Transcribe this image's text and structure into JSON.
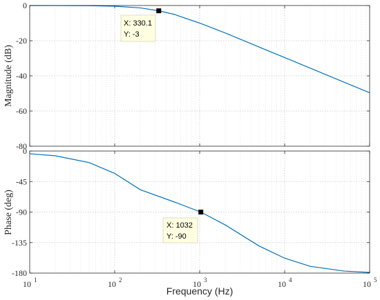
{
  "chart_data": {
    "type": "line",
    "xscale": "log",
    "xlabel": "Frequency  (Hz)",
    "x_ticks": [
      10,
      100,
      1000,
      10000,
      100000
    ],
    "x_tick_labels": [
      {
        "base": "10",
        "exp": "1"
      },
      {
        "base": "10",
        "exp": "2"
      },
      {
        "base": "10",
        "exp": "3"
      },
      {
        "base": "10",
        "exp": "4"
      },
      {
        "base": "10",
        "exp": "5"
      }
    ],
    "line_color": "#0072BD",
    "grid": true,
    "panels": [
      {
        "id": "magnitude",
        "ylabel": "Magnitude (dB)",
        "xlim": [
          10,
          100000
        ],
        "ylim": [
          -80,
          0
        ],
        "y_ticks": [
          0,
          -20,
          -40,
          -60,
          -80
        ],
        "y_tick_labels": [
          "0",
          "-20",
          "-40",
          "-60",
          "-80"
        ],
        "series": [
          {
            "x": [
              10,
              20,
              50,
              100,
              200,
              330.1,
              500,
              1000,
              2000,
              5000,
              10000,
              20000,
              50000,
              100000
            ],
            "values": [
              -0.004,
              -0.016,
              -0.1,
              -0.38,
              -1.34,
              -3.0,
              -5.0,
              -10.0,
              -15.6,
              -23.6,
              -29.6,
              -35.6,
              -43.6,
              -49.6
            ]
          }
        ],
        "datatip": {
          "x": 330.1,
          "y": -3,
          "x_label": "X: 330.1",
          "y_label": "Y: -3"
        }
      },
      {
        "id": "phase",
        "ylabel": "Phase (deg)",
        "xlim": [
          10,
          100000
        ],
        "ylim": [
          -180,
          0
        ],
        "y_ticks": [
          0,
          -45,
          -90,
          -135,
          -180
        ],
        "y_tick_labels": [
          "0",
          "-45",
          "-90",
          "-135",
          "-180"
        ],
        "series": [
          {
            "x": [
              10,
              20,
              50,
              100,
              200,
              500,
              1032,
              2000,
              5000,
              10000,
              20000,
              50000,
              100000
            ],
            "values": [
              -4,
              -7,
              -17,
              -33,
              -57,
              -75,
              -90,
              -109,
              -140,
              -158,
              -170,
              -177,
              -179
            ]
          }
        ],
        "datatip": {
          "x": 1032,
          "y": -90,
          "x_label": "X: 1032",
          "y_label": "Y: -90"
        }
      }
    ]
  }
}
